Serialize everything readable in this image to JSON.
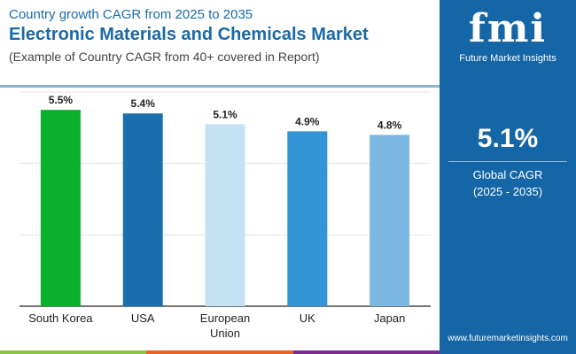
{
  "header": {
    "subtitle": "Country growth CAGR from 2025 to 2035",
    "title": "Electronic Materials and Chemicals Market",
    "note": "(Example of Country CAGR from 40+ covered in Report)"
  },
  "brand": {
    "logo_text": "fmi",
    "name": "Future Market Insights",
    "url": "www.futuremarketinsights.com"
  },
  "summary": {
    "value": "5.1%",
    "label": "Global CAGR",
    "period": "(2025 - 2035)"
  },
  "colors": {
    "panel": "#1566a6",
    "strip": [
      "#8bc34a",
      "#e8622a",
      "#7b2d8e"
    ]
  },
  "chart_data": {
    "type": "bar",
    "categories": [
      "South Korea",
      "USA",
      "European Union",
      "UK",
      "Japan"
    ],
    "values": [
      5.5,
      5.4,
      5.1,
      4.9,
      4.8
    ],
    "data_labels": [
      "5.5%",
      "5.4%",
      "5.1%",
      "4.9%",
      "4.8%"
    ],
    "colors": [
      "#0db02b",
      "#1c6fae",
      "#c4e2f3",
      "#3394d6",
      "#7db8e2"
    ],
    "ylim": [
      0,
      6
    ],
    "grid": true,
    "legend": "none"
  }
}
